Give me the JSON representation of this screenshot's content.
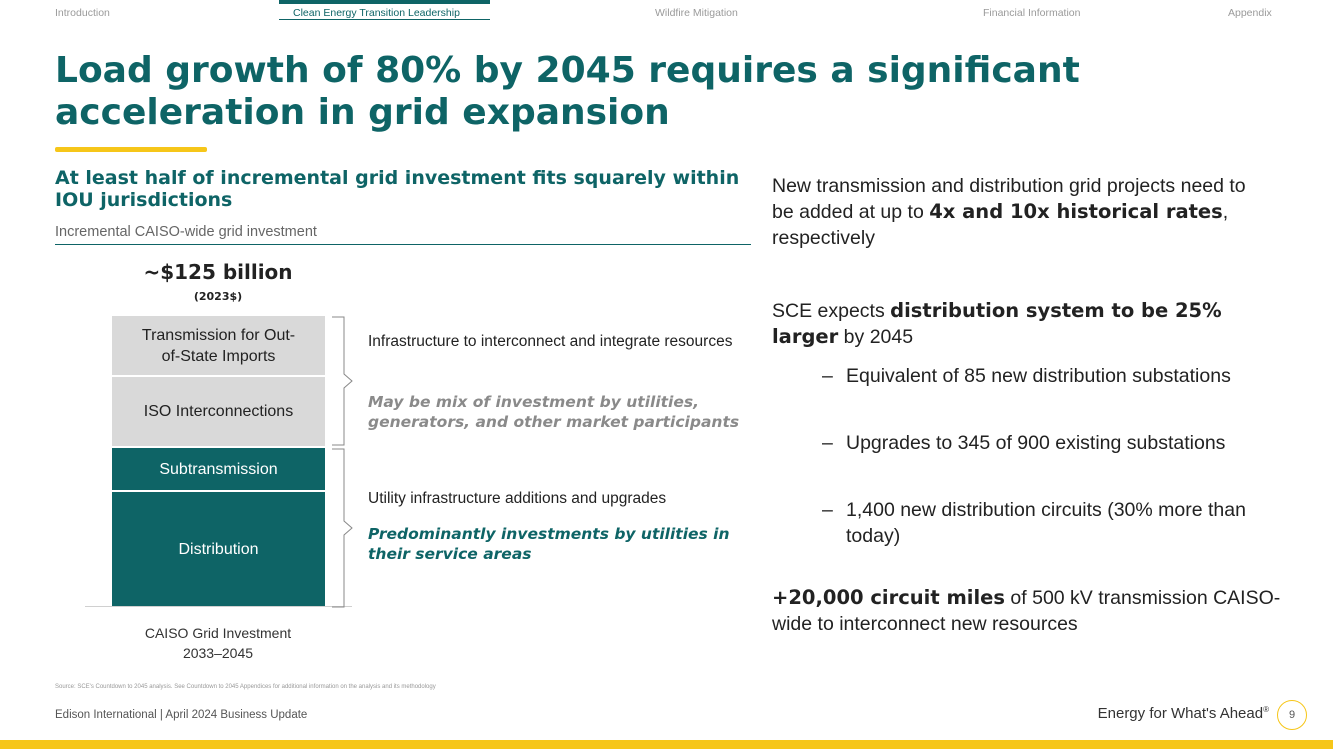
{
  "nav": {
    "tabs": [
      {
        "label": "Introduction",
        "active": false
      },
      {
        "label": "Clean Energy Transition Leadership",
        "active": true
      },
      {
        "label": "Wildfire Mitigation",
        "active": false
      },
      {
        "label": "Financial Information",
        "active": false
      },
      {
        "label": "Appendix",
        "active": false
      }
    ]
  },
  "title": "Load growth of 80% by 2045 requires a significant acceleration in grid expansion",
  "left": {
    "heading": "At least half of incremental grid investment fits squarely within IOU jurisdictions",
    "subheading": "Incremental CAISO-wide grid investment",
    "total": "~$125 billion",
    "total_unit": "(2023$)",
    "segments": [
      "Transmission for Out-of-State Imports",
      "ISO Interconnections",
      "Subtransmission",
      "Distribution"
    ],
    "groups": [
      {
        "text": "Infrastructure to interconnect and integrate resources",
        "italic": "May be mix of investment by utilities, generators, and other market participants"
      },
      {
        "text": "Utility infrastructure additions and upgrades",
        "italic": "Predominantly investments by utilities in their service areas"
      }
    ],
    "xlabel_line1": "CAISO Grid Investment",
    "xlabel_line2": "2033–2045"
  },
  "right": {
    "p1_pre": "New transmission and distribution grid projects need to be added at up to ",
    "p1_bold": "4x and 10x historical rates",
    "p1_post": ", respectively",
    "p2_pre": "SCE expects ",
    "p2_bold": "distribution system to be 25% larger",
    "p2_post": " by 2045",
    "bullet_dash": "–",
    "bullets": [
      "Equivalent of 85 new distribution substations",
      "Upgrades to 345 of 900 existing substations",
      "1,400 new distribution circuits (30% more than today)"
    ],
    "p3_bold": "+20,000 circuit miles",
    "p3_post": " of 500 kV transmission CAISO-wide to interconnect new resources"
  },
  "footer": {
    "source": "Source: SCE's Countdown to 2045 analysis. See Countdown to 2045 Appendices for additional information on the analysis and its methodology",
    "left": "Edison International | April 2024 Business Update",
    "tagline": "Energy for What's Ahead",
    "reg": "®",
    "page": "9"
  },
  "colors": {
    "brand_teal": "#0e6466",
    "accent_yellow": "#f6c619",
    "bar_grey": "#d9d9d9"
  }
}
